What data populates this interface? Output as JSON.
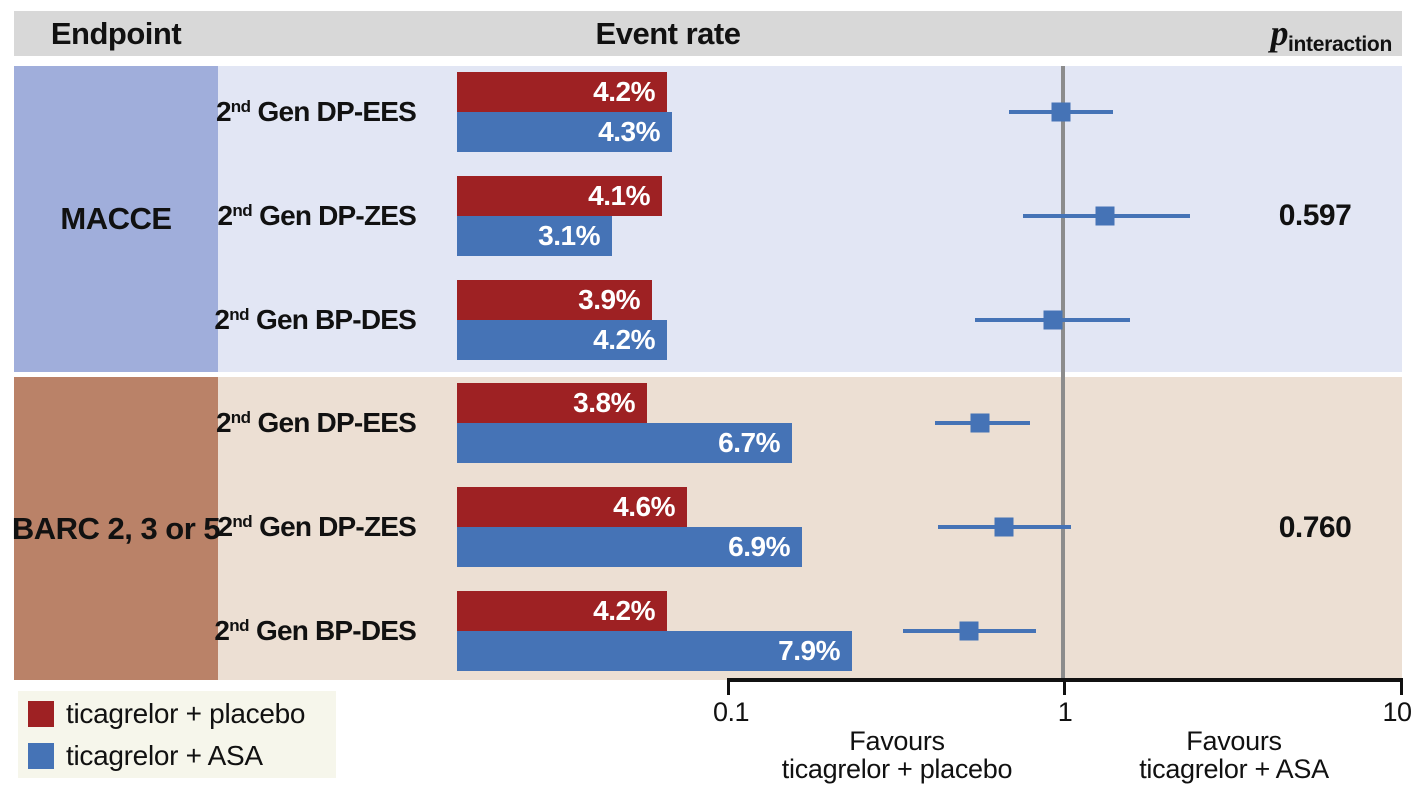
{
  "header": {
    "endpoint": "Endpoint",
    "event_rate": "Event rate",
    "p_italic": "p",
    "p_subscript": "interaction"
  },
  "axis_labels": {
    "favours_left_line1": "Favours",
    "favours_left_line2": "ticagrelor + placebo",
    "favours_right_line1": "Favours",
    "favours_right_line2": "ticagrelor + ASA"
  },
  "legend": {
    "items": [
      {
        "label": "ticagrelor + placebo",
        "color": "#9e2123"
      },
      {
        "label": "ticagrelor + ASA",
        "color": "#4573b6"
      }
    ]
  },
  "colors": {
    "placebo_bar": "#9e2123",
    "asa_bar": "#4573b6",
    "forest_blue": "#4573b6",
    "header_gray": "#d8d8d8",
    "macce_stripe": "#a0aedb",
    "macce_body": "#e2e6f4",
    "barc_stripe": "#ba8268",
    "barc_body": "#ecdfd3",
    "reference_line_gray": "#8c8c8c",
    "legend_background": "#f6f6eb"
  },
  "chart_data": {
    "type": "bar",
    "subtype": "paired horizontal bars with forest plot (log-scale hazard ratios)",
    "series_names": [
      "ticagrelor + placebo",
      "ticagrelor + ASA"
    ],
    "groups": [
      {
        "endpoint": "MACCE",
        "p_interaction": "0.597",
        "rows": [
          {
            "stent": "2nd Gen DP-EES",
            "placebo_event_rate_pct": 4.2,
            "asa_event_rate_pct": 4.3,
            "hr": 0.97,
            "ci": [
              0.68,
              1.39
            ]
          },
          {
            "stent": "2nd Gen DP-ZES",
            "placebo_event_rate_pct": 4.1,
            "asa_event_rate_pct": 3.1,
            "hr": 1.31,
            "ci": [
              0.75,
              2.35
            ]
          },
          {
            "stent": "2nd Gen BP-DES",
            "placebo_event_rate_pct": 3.9,
            "asa_event_rate_pct": 4.2,
            "hr": 0.92,
            "ci": [
              0.54,
              1.56
            ]
          }
        ]
      },
      {
        "endpoint": "BARC 2, 3 or 5",
        "p_interaction": "0.760",
        "rows": [
          {
            "stent": "2nd Gen DP-EES",
            "placebo_event_rate_pct": 3.8,
            "asa_event_rate_pct": 6.7,
            "hr": 0.56,
            "ci": [
              0.41,
              0.79
            ]
          },
          {
            "stent": "2nd Gen DP-ZES",
            "placebo_event_rate_pct": 4.6,
            "asa_event_rate_pct": 6.9,
            "hr": 0.66,
            "ci": [
              0.42,
              1.04
            ]
          },
          {
            "stent": "2nd Gen BP-DES",
            "placebo_event_rate_pct": 4.2,
            "asa_event_rate_pct": 7.9,
            "hr": 0.52,
            "ci": [
              0.33,
              0.82
            ]
          }
        ]
      }
    ],
    "x_axis": {
      "scale": "log",
      "range": [
        0.1,
        10
      ],
      "ticks": [
        0.1,
        1,
        10
      ],
      "tick_labels": [
        "0.1",
        "1",
        "10"
      ],
      "reference_line": 1,
      "left_direction_label": "Favours ticagrelor + placebo",
      "right_direction_label": "Favours ticagrelor + ASA"
    }
  }
}
